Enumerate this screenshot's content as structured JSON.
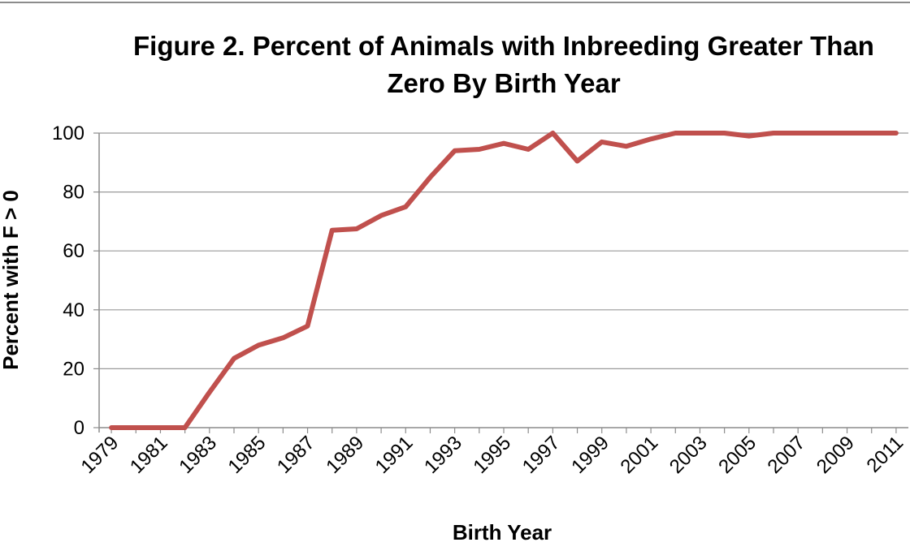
{
  "chart_data": {
    "type": "line",
    "title_lines": [
      "Figure 2. Percent of Animals with Inbreeding Greater Than",
      "Zero By Birth Year"
    ],
    "xlabel": "Birth Year",
    "ylabel": "Percent with F > 0",
    "ylim": [
      0,
      100
    ],
    "yticks": [
      0,
      20,
      40,
      60,
      80,
      100
    ],
    "xticks": [
      "1979",
      "1981",
      "1983",
      "1985",
      "1987",
      "1989",
      "1991",
      "1993",
      "1995",
      "1997",
      "1999",
      "2001",
      "2003",
      "2005",
      "2007",
      "2009",
      "2011"
    ],
    "grid": true,
    "legend": "none",
    "series": [
      {
        "color": "#c0504d",
        "x": [
          1979,
          1980,
          1981,
          1982,
          1983,
          1984,
          1985,
          1986,
          1987,
          1988,
          1989,
          1990,
          1991,
          1992,
          1993,
          1994,
          1995,
          1996,
          1997,
          1998,
          1999,
          2000,
          2001,
          2002,
          2003,
          2004,
          2005,
          2006,
          2007,
          2008,
          2009,
          2010,
          2011
        ],
        "values": [
          0,
          0,
          0,
          0,
          12,
          23.5,
          28,
          30.5,
          34.5,
          67,
          67.5,
          72,
          75,
          85,
          94,
          94.5,
          96.5,
          94.5,
          100,
          90.5,
          97,
          95.5,
          98,
          100,
          100,
          100,
          99,
          100,
          100,
          100,
          100,
          100,
          100
        ]
      }
    ]
  }
}
